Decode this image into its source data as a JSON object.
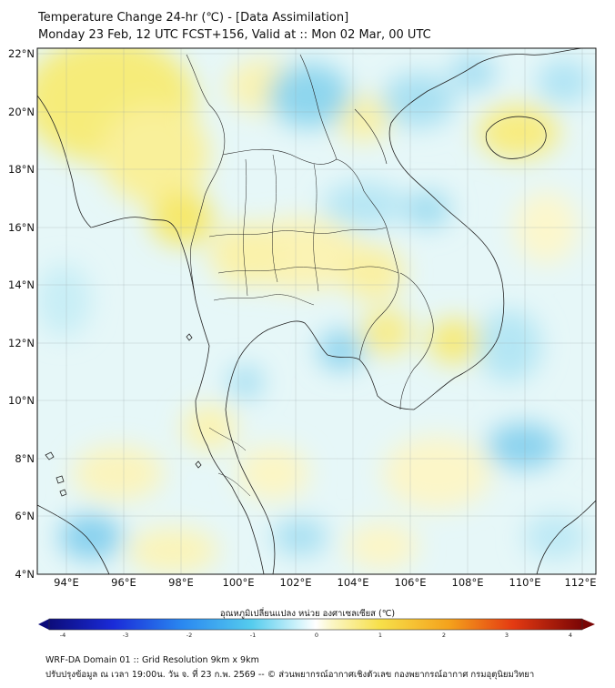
{
  "title_line1": "Temperature Change 24-hr (℃) - [Data Assimilation]",
  "title_line2": "Monday 23 Feb, 12 UTC FCST+156, Valid at :: Mon 02 Mar, 00 UTC",
  "map": {
    "lon_ticks": [
      "94°E",
      "96°E",
      "98°E",
      "100°E",
      "102°E",
      "104°E",
      "106°E",
      "108°E",
      "110°E",
      "112°E"
    ],
    "lat_ticks": [
      "22°N",
      "20°N",
      "18°N",
      "16°N",
      "14°N",
      "12°N",
      "10°N",
      "8°N",
      "6°N",
      "4°N"
    ],
    "lon_range": [
      93,
      112.5
    ],
    "lat_range": [
      4,
      22.2
    ],
    "grid": true
  },
  "colorbar": {
    "label": "อุณหภูมิเปลี่ยนแปลง หน่วย องศาเซลเซียส (℃)",
    "ticks": [
      "-4",
      "-3",
      "-2",
      "-1",
      "0",
      "1",
      "2",
      "3",
      "4"
    ],
    "range": [
      -4,
      4
    ]
  },
  "footer_line1": "WRF-DA Domain 01 :: Grid Resolution 9km x 9km",
  "footer_line2": "ปรับปรุงข้อมูล ณ เวลา 19:00น. วัน จ. ที่ 23 ก.พ. 2569 -- © ส่วนพยากรณ์อากาศเชิงตัวเลข กองพยากรณ์อากาศ กรมอุตุนิยมวิทยา"
}
